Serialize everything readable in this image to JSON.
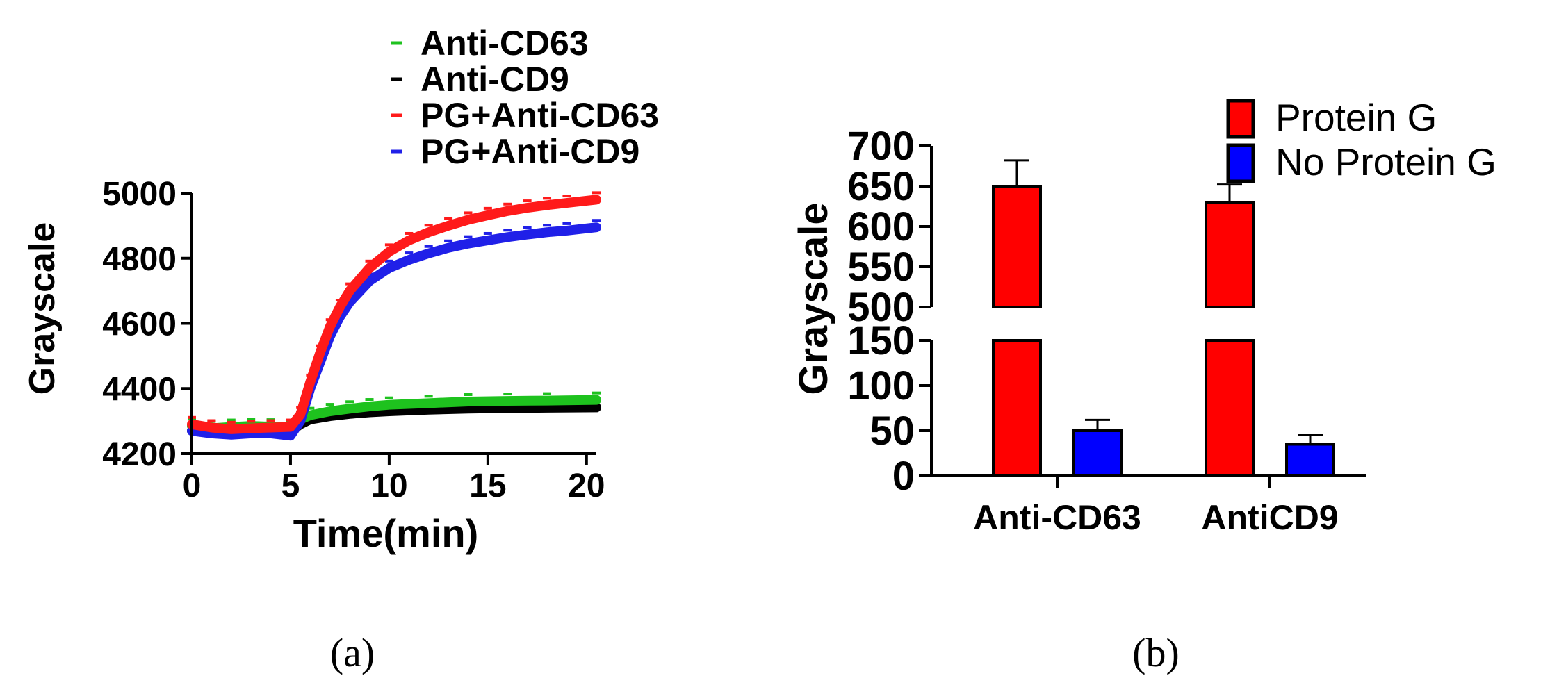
{
  "chart_data": [
    {
      "id": "a",
      "type": "line",
      "panel_label": "(a)",
      "xlabel": "Time(min)",
      "ylabel": "Grayscale",
      "xlim": [
        0,
        20.5
      ],
      "ylim": [
        4200,
        5000
      ],
      "xticks": [
        0,
        5,
        10,
        15,
        20
      ],
      "yticks": [
        4200,
        4400,
        4600,
        4800,
        5000
      ],
      "legend_position": "top",
      "series": [
        {
          "name": "Anti-CD63",
          "color": "#1ec21e",
          "x": [
            0,
            1,
            2,
            3,
            4,
            5,
            5.5,
            6,
            7,
            8,
            9,
            10,
            12,
            14,
            16,
            18,
            20.5
          ],
          "y": [
            4285,
            4278,
            4282,
            4285,
            4283,
            4280,
            4305,
            4318,
            4330,
            4338,
            4345,
            4350,
            4355,
            4360,
            4362,
            4363,
            4365
          ]
        },
        {
          "name": "Anti-CD9",
          "color": "#000000",
          "x": [
            0,
            1,
            2,
            3,
            4,
            5,
            5.5,
            6,
            7,
            8,
            9,
            10,
            12,
            14,
            16,
            18,
            20.5
          ],
          "y": [
            4270,
            4268,
            4270,
            4272,
            4270,
            4268,
            4290,
            4305,
            4315,
            4322,
            4327,
            4330,
            4335,
            4338,
            4340,
            4341,
            4342
          ]
        },
        {
          "name": "PG+Anti-CD63",
          "color": "#ff1a1a",
          "x": [
            0,
            1,
            2,
            3,
            4,
            5,
            5.5,
            6,
            6.5,
            7,
            7.5,
            8,
            9,
            10,
            11,
            12,
            13,
            14,
            15,
            16,
            17,
            18,
            19,
            20.5
          ],
          "y": [
            4290,
            4280,
            4275,
            4278,
            4280,
            4282,
            4320,
            4420,
            4510,
            4590,
            4650,
            4700,
            4770,
            4820,
            4855,
            4880,
            4900,
            4918,
            4932,
            4945,
            4955,
            4963,
            4970,
            4980
          ]
        },
        {
          "name": "PG+Anti-CD9",
          "color": "#2020e8",
          "x": [
            0,
            1,
            2,
            3,
            4,
            5,
            5.5,
            6,
            6.5,
            7,
            7.5,
            8,
            9,
            10,
            11,
            12,
            13,
            14,
            15,
            16,
            17,
            18,
            19,
            20.5
          ],
          "y": [
            4270,
            4262,
            4258,
            4262,
            4262,
            4255,
            4300,
            4400,
            4480,
            4560,
            4620,
            4665,
            4730,
            4770,
            4795,
            4815,
            4832,
            4845,
            4855,
            4865,
            4873,
            4880,
            4885,
            4895
          ]
        }
      ]
    },
    {
      "id": "b",
      "type": "bar",
      "panel_label": "(b)",
      "ylabel": "Grayscale",
      "categories": [
        "Anti-CD63",
        "AntiCD9"
      ],
      "axis_break": {
        "lower": [
          0,
          150
        ],
        "upper": [
          500,
          700
        ]
      },
      "yticks_lower": [
        0,
        50,
        100,
        150
      ],
      "yticks_upper": [
        500,
        550,
        600,
        650,
        700
      ],
      "legend_position": "top-right",
      "series": [
        {
          "name": "Protein G",
          "color": "#ff0000",
          "values": [
            650,
            630
          ],
          "errors": [
            32,
            22
          ]
        },
        {
          "name": "No Protein G",
          "color": "#0000ff",
          "values": [
            50,
            35
          ],
          "errors": [
            12,
            10
          ]
        }
      ]
    }
  ]
}
